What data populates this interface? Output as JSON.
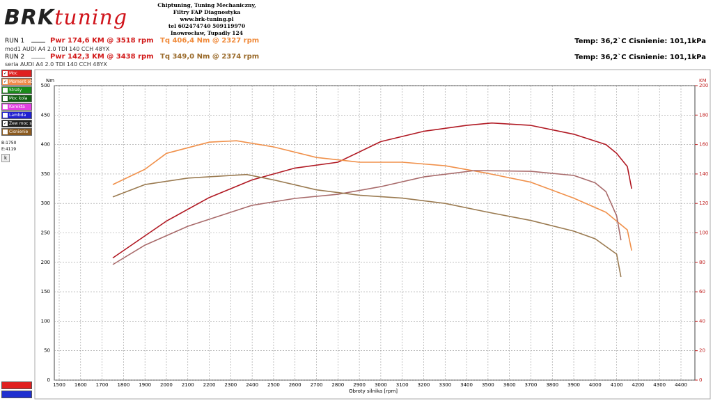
{
  "header": {
    "logo_main": "BRK",
    "logo_sub": "tuning",
    "info": [
      "Chiptuning, Tuning Mechaniczny,",
      "Filtry FAP   Diagnostyka",
      "www.brk-tuning.pl",
      "tel 602474740 509119970",
      "Inowrocław, Tupadly 124"
    ]
  },
  "runs": [
    {
      "name": "RUN 1",
      "power": "Pwr  174,6 KM @ 3518 rpm",
      "torque": "Tq 406,4 Nm @ 2327 rpm",
      "description": "mod1 AUDI A4 2.0 TDI 140 CCH 48YX",
      "conditions": "Temp: 36,2`C   Cisnienie: 101,1kPa"
    },
    {
      "name": "RUN 2",
      "power": "Pwr  142,3 KM @ 3438 rpm",
      "torque": "Tq 349,0 Nm @ 2374 rpm",
      "description": "seria AUDI A4 2.0 TDI 140 CCH 48YX",
      "conditions": "Temp: 36,2`C   Cisnienie: 101,1kPa"
    }
  ],
  "panel": {
    "items": [
      {
        "label": "Moc",
        "color": "#e02020",
        "checked": true
      },
      {
        "label": "Moment obr",
        "color": "#f08a4a",
        "checked": true
      },
      {
        "label": "Straty",
        "color": "#1a8a1a",
        "checked": false
      },
      {
        "label": "Moc kola",
        "color": "#106010",
        "checked": false
      },
      {
        "label": "Korekta",
        "color": "#e040e0",
        "checked": false
      },
      {
        "label": "Lambda",
        "color": "#2020d0",
        "checked": false
      },
      {
        "label": "Zew moc sil",
        "color": "#202020",
        "checked": true
      },
      {
        "label": "Cisnienie",
        "color": "#8a5a20",
        "checked": false
      }
    ],
    "begin": "B:1750",
    "end": "E:4119",
    "button": "k"
  },
  "chart_data": {
    "type": "line",
    "y_label": "Nm",
    "y2_label": "KM",
    "x_label": "Obroty silnika [rpm]",
    "xlim": [
      1500,
      4400
    ],
    "xticks": [
      1500,
      1600,
      1700,
      1800,
      1900,
      2000,
      2100,
      2200,
      2300,
      2400,
      2500,
      2600,
      2700,
      2800,
      2900,
      3000,
      3100,
      3200,
      3300,
      3400,
      3500,
      3600,
      3700,
      3800,
      3900,
      4000,
      4100,
      4200,
      4300,
      4400
    ],
    "ylim": [
      0,
      500
    ],
    "yticks": [
      0,
      50,
      100,
      150,
      200,
      250,
      300,
      350,
      400,
      450,
      500
    ],
    "y2lim": [
      0,
      200
    ],
    "y2ticks": [
      0,
      20,
      40,
      60,
      80,
      100,
      120,
      140,
      160,
      180,
      200
    ],
    "grid": true,
    "series": [
      {
        "name": "RUN 1 Moc",
        "color": "#b01822",
        "axis": "y2",
        "x": [
          1750,
          2000,
          2200,
          2400,
          2600,
          2800,
          3000,
          3200,
          3400,
          3518,
          3700,
          3900,
          4050,
          4100,
          4150,
          4170
        ],
        "values": [
          83,
          108,
          124,
          136,
          144,
          148,
          162,
          169,
          173,
          174.6,
          173,
          167,
          160,
          154,
          145,
          130
        ]
      },
      {
        "name": "RUN 1 Moment obr",
        "color": "#f0904a",
        "axis": "y",
        "x": [
          1750,
          1900,
          2000,
          2200,
          2327,
          2500,
          2700,
          2900,
          3100,
          3300,
          3500,
          3700,
          3900,
          4050,
          4150,
          4170
        ],
        "values": [
          332,
          358,
          385,
          404,
          406.4,
          396,
          378,
          370,
          370,
          364,
          351,
          336,
          309,
          285,
          255,
          220
        ]
      },
      {
        "name": "RUN 2 Moc",
        "color": "#a86a6a",
        "axis": "y2",
        "x": [
          1750,
          1900,
          2100,
          2400,
          2600,
          2800,
          3000,
          3200,
          3438,
          3700,
          3900,
          4000,
          4050,
          4100,
          4120
        ],
        "values": [
          78.5,
          91.7,
          104.5,
          118.7,
          123.4,
          126.2,
          131.4,
          138,
          142.3,
          141.8,
          139,
          134,
          128,
          111.6,
          95
        ]
      },
      {
        "name": "RUN 2 Moment obr",
        "color": "#9a7a50",
        "axis": "y",
        "x": [
          1750,
          1900,
          2100,
          2374,
          2500,
          2700,
          2900,
          3100,
          3300,
          3500,
          3700,
          3900,
          4000,
          4100,
          4120
        ],
        "values": [
          311,
          332,
          343,
          349,
          340,
          323,
          314,
          309,
          300,
          285,
          271,
          253,
          240,
          214,
          175
        ]
      }
    ]
  }
}
